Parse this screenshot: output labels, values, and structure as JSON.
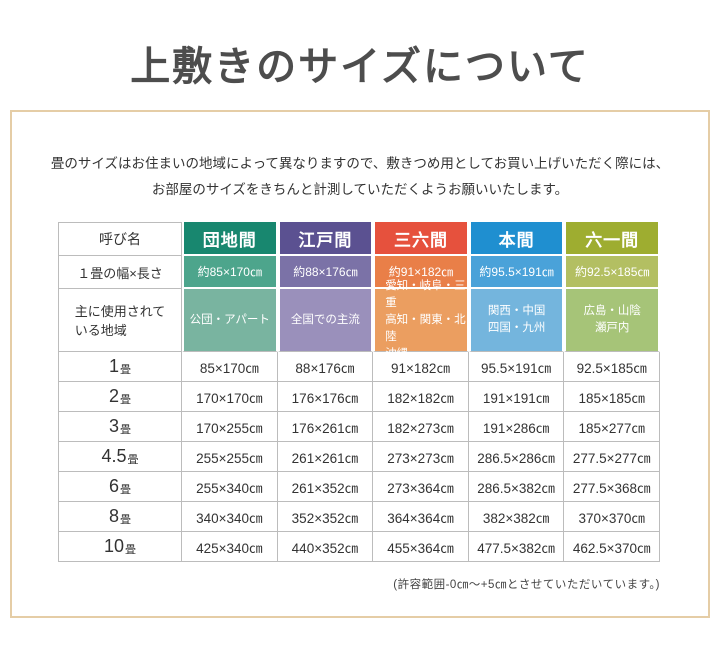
{
  "page": {
    "title": "上敷きのサイズについて",
    "intro_line1": "畳のサイズはお住まいの地域によって異なりますので、敷きつめ用としてお買い上げいただく際には、",
    "intro_line2": "お部屋のサイズをきちんと計測していただくようお願いいたします。",
    "footnote": "(許容範囲-0㎝～+5㎝とさせていただいています。)",
    "frame_color": "#e5cda6"
  },
  "table": {
    "corner_label": "呼び名",
    "size_row_label": "１畳の幅×長さ",
    "region_row_label": "主に使用されて\nいる地域",
    "columns": [
      {
        "name": "団地間",
        "size": "約85×170㎝",
        "region": "公団・アパート",
        "header_color": "#18876f",
        "size_color": "#4da58c",
        "region_color": "#79b4a0"
      },
      {
        "name": "江戸間",
        "size": "約88×176㎝",
        "region": "全国での主流",
        "header_color": "#5b5191",
        "size_color": "#7b72a7",
        "region_color": "#9a90bb"
      },
      {
        "name": "三六間",
        "size": "約91×182㎝",
        "region": "愛知・岐阜・三重\n高知・関東・北陸\n沖縄",
        "header_color": "#e6513d",
        "size_color": "#e97f48",
        "region_color": "#eb9e60"
      },
      {
        "name": "本間",
        "size": "約95.5×191㎝",
        "region": "関西・中国\n四国・九州",
        "header_color": "#1f8fd0",
        "size_color": "#4aa2d9",
        "region_color": "#74b5dd"
      },
      {
        "name": "六一間",
        "size": "約92.5×185㎝",
        "region": "広島・山陰\n瀬戸内",
        "header_color": "#9ead30",
        "size_color": "#b3bf62",
        "region_color": "#a6c478"
      }
    ],
    "rows": [
      {
        "num": "1",
        "unit": "畳",
        "values": [
          "85×170㎝",
          "88×176㎝",
          "91×182㎝",
          "95.5×191㎝",
          "92.5×185㎝"
        ]
      },
      {
        "num": "2",
        "unit": "畳",
        "values": [
          "170×170㎝",
          "176×176㎝",
          "182×182㎝",
          "191×191㎝",
          "185×185㎝"
        ]
      },
      {
        "num": "3",
        "unit": "畳",
        "values": [
          "170×255㎝",
          "176×261㎝",
          "182×273㎝",
          "191×286㎝",
          "185×277㎝"
        ]
      },
      {
        "num": "4.5",
        "unit": "畳",
        "values": [
          "255×255㎝",
          "261×261㎝",
          "273×273㎝",
          "286.5×286㎝",
          "277.5×277㎝"
        ]
      },
      {
        "num": "6",
        "unit": "畳",
        "values": [
          "255×340㎝",
          "261×352㎝",
          "273×364㎝",
          "286.5×382㎝",
          "277.5×368㎝"
        ]
      },
      {
        "num": "8",
        "unit": "畳",
        "values": [
          "340×340㎝",
          "352×352㎝",
          "364×364㎝",
          "382×382㎝",
          "370×370㎝"
        ]
      },
      {
        "num": "10",
        "unit": "畳",
        "values": [
          "425×340㎝",
          "440×352㎝",
          "455×364㎝",
          "477.5×382㎝",
          "462.5×370㎝"
        ]
      }
    ]
  }
}
